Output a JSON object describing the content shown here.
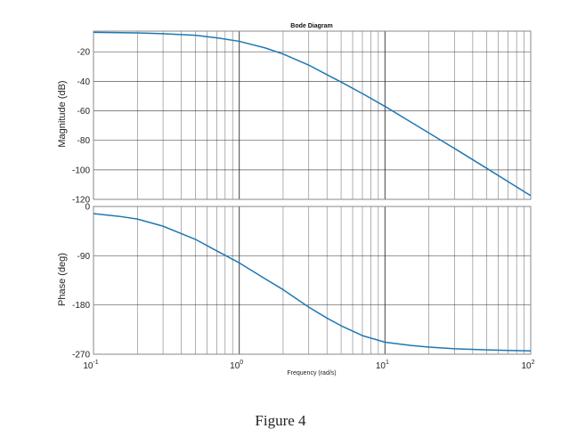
{
  "figure_caption": "Figure 4",
  "colors": {
    "line": "#1f77b4",
    "grid_major": "#222222",
    "grid_minor": "#444444",
    "axis_box": "#888888"
  },
  "chart_data": [
    {
      "type": "line",
      "title": "Bode Diagram",
      "xlabel": "Frequency  (rad/s)",
      "ylabel": "Magnitude (dB)",
      "xscale": "log",
      "xlim": [
        0.1,
        100
      ],
      "ylim": [
        -120,
        -6
      ],
      "yticks": [
        -20,
        -40,
        -60,
        -80,
        -100,
        -120
      ],
      "grid": true,
      "series": [
        {
          "x": [
            0.1,
            0.2,
            0.3,
            0.5,
            0.7,
            1,
            1.5,
            2,
            3,
            4,
            5,
            7,
            10,
            15,
            20,
            30,
            50,
            70,
            100
          ],
          "values": [
            -6.8,
            -7.2,
            -7.7,
            -8.8,
            -10.5,
            -12.9,
            -17.3,
            -21.5,
            -29,
            -35.5,
            -40.5,
            -48.3,
            -57,
            -67.5,
            -75,
            -85.5,
            -99,
            -108,
            -117.5
          ]
        }
      ]
    },
    {
      "type": "line",
      "xlabel": "Frequency  (rad/s)",
      "ylabel": "Phase (deg)",
      "xscale": "log",
      "xlim": [
        0.1,
        100
      ],
      "xticks": [
        "10-1",
        "100",
        "101",
        "102"
      ],
      "ylim": [
        -270,
        0
      ],
      "yticks": [
        0,
        -90,
        -180,
        -270
      ],
      "grid": true,
      "series": [
        {
          "x": [
            0.1,
            0.15,
            0.2,
            0.3,
            0.5,
            0.7,
            1,
            1.5,
            2,
            3,
            4,
            5,
            7,
            10,
            15,
            20,
            30,
            50,
            70,
            100
          ],
          "values": [
            -13,
            -18,
            -23,
            -36,
            -60,
            -81,
            -103,
            -132,
            -152,
            -184,
            -204,
            -218,
            -236,
            -248,
            -254,
            -257,
            -260,
            -262,
            -263,
            -264
          ]
        }
      ]
    }
  ]
}
